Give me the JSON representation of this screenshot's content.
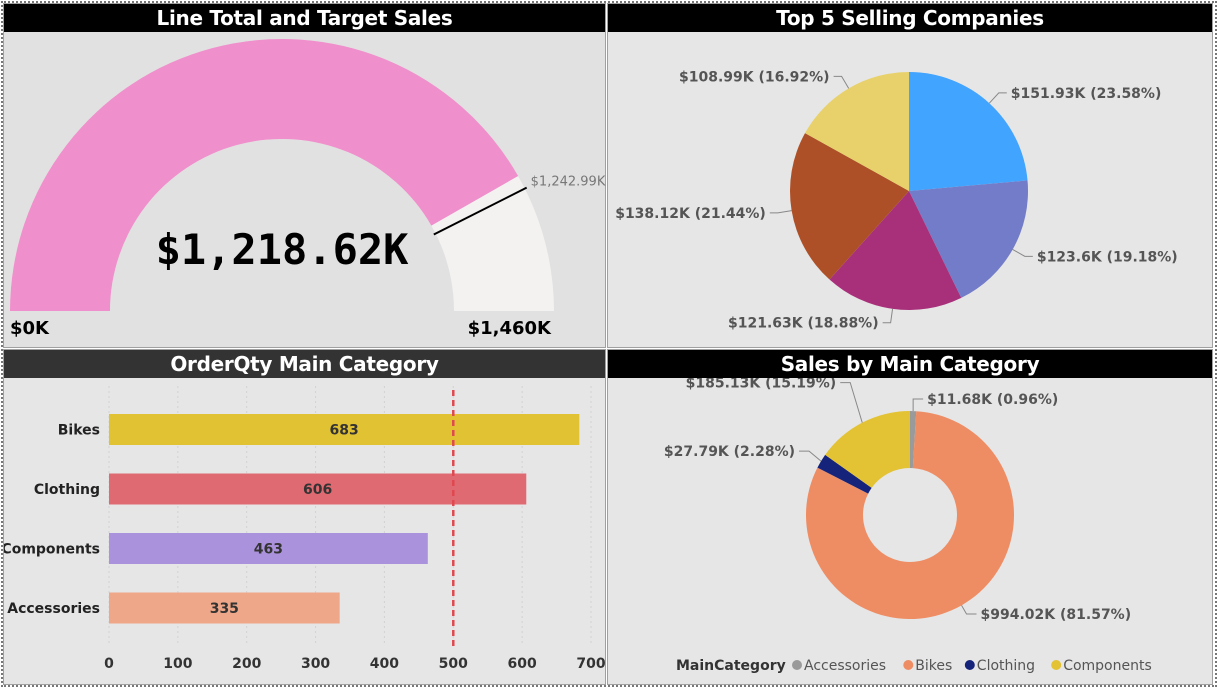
{
  "colors": {
    "title_bg": "#000000",
    "title_fg": "#ffffff",
    "panel_bg": "#e6e6e6"
  },
  "gauge": {
    "title": "Line Total and Target Sales",
    "value_label": "$1,218.62K",
    "min_label": "$0K",
    "max_label": "$1,460K",
    "target_label": "$1,242.99K",
    "value": 1218.62,
    "target": 1242.99,
    "min": 0,
    "max": 1460,
    "fill_color": "#ef8fcb",
    "track_color": "#f3f2f1"
  },
  "pie": {
    "title": "Top 5 Selling Companies",
    "chart_data": {
      "type": "pie",
      "slices": [
        {
          "value": 151.93,
          "label": "$151.93K (23.58%)",
          "color": "#41a4ff"
        },
        {
          "value": 123.6,
          "label": "$123.6K (19.18%)",
          "color": "#737cc8"
        },
        {
          "value": 121.63,
          "label": "$121.63K (18.88%)",
          "color": "#a8307b"
        },
        {
          "value": 138.12,
          "label": "$138.12K (21.44%)",
          "color": "#ad5028"
        },
        {
          "value": 108.99,
          "label": "$108.99K (16.92%)",
          "color": "#e8d16a"
        }
      ]
    }
  },
  "bar": {
    "title": "OrderQty Main Category",
    "chart_data": {
      "type": "bar",
      "categories": [
        "Bikes",
        "Clothing",
        "Components",
        "Accessories"
      ],
      "values": [
        683,
        606,
        463,
        335
      ],
      "colors": [
        "#e1c233",
        "#df6a71",
        "#ab92dd",
        "#efa789"
      ],
      "xlim": [
        0,
        700
      ],
      "ticks": [
        "0",
        "100",
        "200",
        "300",
        "400",
        "500",
        "600",
        "700"
      ],
      "reference_line": 500,
      "reference_color": "#e04850"
    }
  },
  "donut": {
    "title": "Sales by Main Category",
    "legend_title": "MainCategory",
    "chart_data": {
      "type": "pie",
      "slices": [
        {
          "name": "Accessories",
          "value": 11.68,
          "label": "$11.68K (0.96%)",
          "color": "#9a9a9a"
        },
        {
          "name": "Bikes",
          "value": 994.02,
          "label": "$994.02K (81.57%)",
          "color": "#ee8d64"
        },
        {
          "name": "Clothing",
          "value": 27.79,
          "label": "$27.79K (2.28%)",
          "color": "#15237a"
        },
        {
          "name": "Components",
          "value": 185.13,
          "label": "$185.13K (15.19%)",
          "color": "#e3c233"
        }
      ]
    }
  }
}
